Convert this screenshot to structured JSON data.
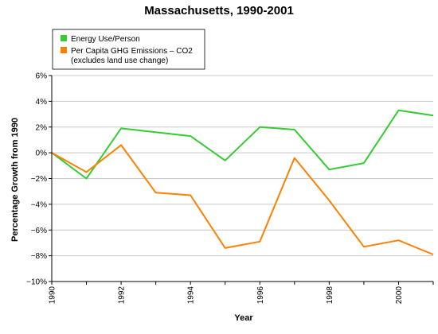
{
  "chart_data": {
    "type": "line",
    "title": "Massachusetts, 1990-2001",
    "xlabel": "Year",
    "ylabel": "Percentage Growth from 1990",
    "x": [
      1990,
      1991,
      1992,
      1993,
      1994,
      1995,
      1996,
      1997,
      1998,
      1999,
      2000,
      2001
    ],
    "x_tick_labels": [
      "1990",
      "1992",
      "1994",
      "1996",
      "1998",
      "2000"
    ],
    "y_tick_labels": [
      "6%",
      "4%",
      "2%",
      "0%",
      "−2%",
      "−4%",
      "−6%",
      "−8%",
      "−10%"
    ],
    "xlim": [
      1990,
      2001
    ],
    "ylim": [
      -10,
      6
    ],
    "grid": "horizontal",
    "legend_position": "top-left",
    "series": [
      {
        "name": "Energy Use/Person",
        "color": "#33cc33",
        "values": [
          0,
          -2.0,
          1.9,
          1.6,
          1.3,
          -0.6,
          2.0,
          1.8,
          -1.3,
          -0.8,
          3.3,
          2.9
        ]
      },
      {
        "name": "Per Capita GHG Emissions – CO2",
        "note": "(excludes land use change)",
        "color": "#ff8000",
        "values": [
          0,
          -1.5,
          0.6,
          -3.1,
          -3.3,
          -7.4,
          -6.9,
          -0.4,
          -3.7,
          -7.3,
          -6.8,
          -7.9
        ]
      }
    ]
  }
}
